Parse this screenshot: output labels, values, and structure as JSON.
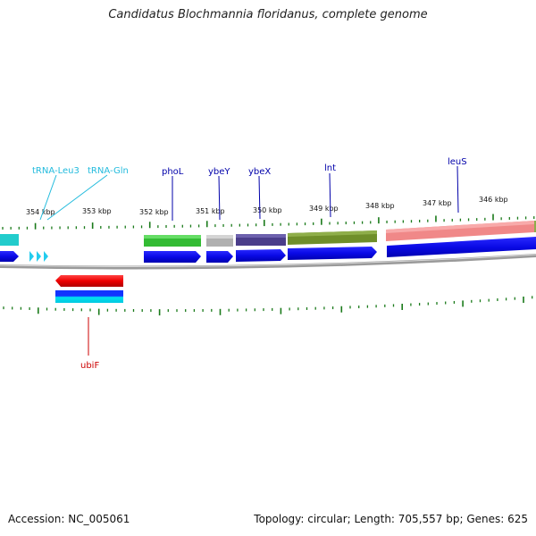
{
  "title": "Candidatus Blochmannia floridanus, complete genome",
  "footer": {
    "accession": "Accession: NC_005061",
    "summary": "Topology: circular; Length: 705,557 bp; Genes: 625"
  },
  "scale": {
    "labels": [
      "354 kbp",
      "353 kbp",
      "352 kbp",
      "351 kbp",
      "350 kbp",
      "349 kbp",
      "348 kbp",
      "347 kbp",
      "346 kbp"
    ]
  },
  "genes": [
    {
      "name": "tRNA-Leu3",
      "color": "#22bbdd"
    },
    {
      "name": "tRNA-Gln",
      "color": "#22bbdd"
    },
    {
      "name": "phoL",
      "color": "#0000aa"
    },
    {
      "name": "ybeY",
      "color": "#0000aa"
    },
    {
      "name": "ybeX",
      "color": "#0000aa"
    },
    {
      "name": "lnt",
      "color": "#0000aa"
    },
    {
      "name": "leuS",
      "color": "#0000aa"
    },
    {
      "name": "ubiF",
      "color": "#cc0000"
    }
  ],
  "colors": {
    "forward_cds": "#0a0ae6",
    "reverse_cds": "#ee0000",
    "trna": "#22ccee",
    "tick": "#1a7a1a",
    "backbone": "#888888",
    "cog_green": "#33bb33",
    "cog_grey": "#b0b0b0",
    "cog_purple": "#4a3d8a",
    "cog_olive": "#6f8e2a",
    "cog_pink": "#f08888",
    "cog_cyan": "#22cccc"
  }
}
